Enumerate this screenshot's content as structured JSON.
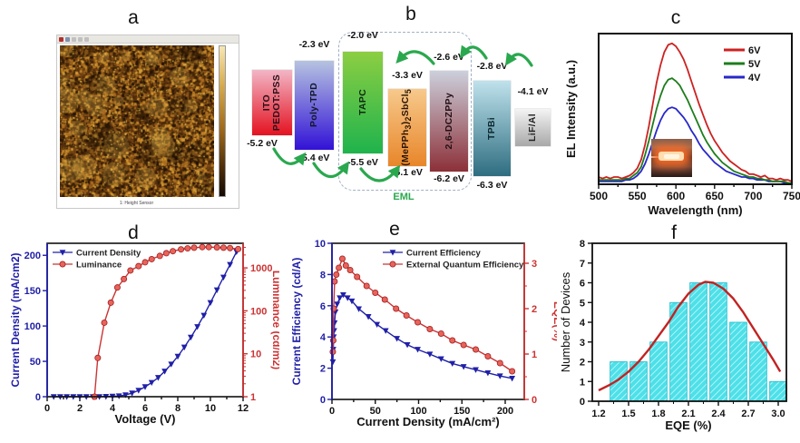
{
  "panels": {
    "a": {
      "label": "a",
      "caption": "1: Height Sensor"
    },
    "b": {
      "label": "b"
    },
    "c": {
      "label": "c"
    },
    "d": {
      "label": "d"
    },
    "e": {
      "label": "e"
    },
    "f": {
      "label": "f"
    }
  },
  "energy_diagram": {
    "eml_label": "EML",
    "arrow_color": "#2aa84e",
    "layers": [
      {
        "name_html": "ITO<br>PEDOT:PSS",
        "name": "ITO PEDOT:PSS",
        "bottom": "-5.2 eV",
        "color_top": "#f2b6c6",
        "color_bottom": "#e41220",
        "text_color": "#26101a"
      },
      {
        "name_html": "Poly-TPD",
        "name": "Poly-TPD",
        "top": "-2.3 eV",
        "bottom": "-5.4 eV",
        "color_top": "#b6c3e0",
        "color_bottom": "#3212d6",
        "text_color": "#101828"
      },
      {
        "name_html": "TAPC",
        "name": "TAPC",
        "top": "-2.0 eV",
        "bottom": "-5.5 eV",
        "color_top": "#8cce42",
        "color_bottom": "#1fb34d",
        "text_color": "#0d2a10"
      },
      {
        "name_html": "(MePPh<sub>3</sub>)<sub>2</sub>SbCl<sub>5</sub>",
        "name": "(MePPh3)2SbCl5",
        "top": "-3.3 eV",
        "bottom": "-6.1 eV",
        "color_top": "#f7c98c",
        "color_bottom": "#e8862a",
        "text_color": "#2a1505"
      },
      {
        "name_html": "2,6-DCZPPy",
        "name": "2,6-DCZPPy",
        "top": "-2.6 eV",
        "bottom": "-6.2 eV",
        "color_top": "#ccd0dc",
        "color_bottom": "#8c3038",
        "text_color": "#241016"
      },
      {
        "name_html": "TPBi",
        "name": "TPBi",
        "top": "-2.8 eV",
        "bottom": "-6.3 eV",
        "color_top": "#bfe2ec",
        "color_bottom": "#2e6d80",
        "text_color": "#0c2830"
      },
      {
        "name_html": "LiF/Al",
        "name": "LiF/Al",
        "top": "-4.1 eV",
        "color_top": "#f4f4f4",
        "color_bottom": "#a8a8a8",
        "text_color": "#222222"
      }
    ]
  },
  "chart_data": [
    {
      "panel": "c",
      "type": "line",
      "xlabel": "Wavelength (nm)",
      "ylabel": "EL Intensity (a.u.)",
      "xlim": [
        500,
        750
      ],
      "x_ticks": [
        500,
        550,
        600,
        650,
        700,
        750
      ],
      "legend_position": "top-right",
      "x": [
        500,
        505,
        510,
        515,
        520,
        525,
        530,
        535,
        540,
        545,
        550,
        555,
        560,
        565,
        570,
        575,
        580,
        585,
        590,
        595,
        600,
        605,
        610,
        615,
        620,
        625,
        630,
        635,
        640,
        645,
        650,
        655,
        660,
        665,
        670,
        675,
        680,
        685,
        690,
        695,
        700,
        705,
        710,
        715,
        720,
        725,
        730,
        735,
        740,
        745,
        750
      ],
      "series": [
        {
          "name": "4V",
          "color": "#2828c8",
          "y": [
            0.02,
            0.02,
            0.02,
            0.02,
            0.02,
            0.02,
            0.02,
            0.03,
            0.03,
            0.04,
            0.06,
            0.09,
            0.14,
            0.21,
            0.29,
            0.37,
            0.44,
            0.49,
            0.52,
            0.53,
            0.52,
            0.49,
            0.46,
            0.42,
            0.37,
            0.33,
            0.28,
            0.24,
            0.21,
            0.18,
            0.15,
            0.13,
            0.11,
            0.09,
            0.08,
            0.07,
            0.06,
            0.05,
            0.05,
            0.04,
            0.04,
            0.03,
            0.03,
            0.03,
            0.02,
            0.02,
            0.02,
            0.02,
            0.01,
            0.01,
            0.01
          ]
        },
        {
          "name": "5V",
          "color": "#1e7d1e",
          "y": [
            0.03,
            0.03,
            0.03,
            0.03,
            0.03,
            0.03,
            0.03,
            0.04,
            0.04,
            0.06,
            0.08,
            0.12,
            0.2,
            0.3,
            0.41,
            0.52,
            0.61,
            0.68,
            0.72,
            0.73,
            0.71,
            0.68,
            0.63,
            0.58,
            0.52,
            0.46,
            0.4,
            0.34,
            0.29,
            0.25,
            0.21,
            0.18,
            0.15,
            0.13,
            0.11,
            0.09,
            0.08,
            0.07,
            0.06,
            0.05,
            0.05,
            0.04,
            0.04,
            0.03,
            0.03,
            0.02,
            0.02,
            0.02,
            0.02,
            0.01,
            0.01
          ]
        },
        {
          "name": "6V",
          "color": "#cc2222",
          "y": [
            0.05,
            0.04,
            0.05,
            0.04,
            0.05,
            0.05,
            0.04,
            0.05,
            0.06,
            0.08,
            0.11,
            0.17,
            0.27,
            0.4,
            0.55,
            0.7,
            0.82,
            0.91,
            0.96,
            0.97,
            0.95,
            0.91,
            0.86,
            0.79,
            0.71,
            0.63,
            0.55,
            0.48,
            0.41,
            0.35,
            0.3,
            0.26,
            0.22,
            0.19,
            0.16,
            0.14,
            0.12,
            0.1,
            0.09,
            0.07,
            0.07,
            0.06,
            0.05,
            0.06,
            0.04,
            0.04,
            0.03,
            0.04,
            0.03,
            0.03,
            0.02
          ]
        }
      ]
    },
    {
      "panel": "d",
      "type": "dual-axis-line",
      "xlabel": "Voltage (V)",
      "ylabel_left": "Current Density (mA/cm2)",
      "ylabel_right": "Luminance (cd/m2)",
      "x_ticks": [
        0,
        2,
        4,
        6,
        8,
        10,
        12
      ],
      "left_ticks": [
        0,
        50,
        100,
        150,
        200
      ],
      "right_ticks": [
        1,
        10,
        100,
        1000
      ],
      "right_scale": "log",
      "left_color": "#2020a8",
      "right_color": "#cc3333",
      "series": [
        {
          "name": "Current Density",
          "axis": "left",
          "marker": "triangle-down",
          "line_color": "#2020a8",
          "marker_fill": "#2020a8",
          "points": [
            [
              0.4,
              0
            ],
            [
              0.8,
              0
            ],
            [
              1.2,
              0
            ],
            [
              1.6,
              0
            ],
            [
              2.0,
              0
            ],
            [
              2.4,
              0
            ],
            [
              2.8,
              0
            ],
            [
              3.2,
              0
            ],
            [
              3.6,
              0.2
            ],
            [
              4.0,
              0.5
            ],
            [
              4.4,
              1
            ],
            [
              4.8,
              2.5
            ],
            [
              5.2,
              5
            ],
            [
              5.6,
              9
            ],
            [
              6.0,
              14
            ],
            [
              6.4,
              20
            ],
            [
              6.8,
              27
            ],
            [
              7.2,
              36
            ],
            [
              7.6,
              46
            ],
            [
              8.0,
              57
            ],
            [
              8.4,
              70
            ],
            [
              8.8,
              84
            ],
            [
              9.2,
              99
            ],
            [
              9.6,
              115
            ],
            [
              10.0,
              133
            ],
            [
              10.4,
              151
            ],
            [
              10.8,
              169
            ],
            [
              11.2,
              187
            ],
            [
              11.6,
              205
            ]
          ]
        },
        {
          "name": "Luminance",
          "axis": "right",
          "marker": "circle",
          "line_color": "#cc3333",
          "marker_fill": "#e8635a",
          "points": [
            [
              2.9,
              1
            ],
            [
              3.1,
              8
            ],
            [
              3.5,
              53
            ],
            [
              3.9,
              155
            ],
            [
              4.3,
              350
            ],
            [
              4.7,
              550
            ],
            [
              5.1,
              870
            ],
            [
              5.6,
              1100
            ],
            [
              6.0,
              1350
            ],
            [
              6.4,
              1600
            ],
            [
              6.9,
              1900
            ],
            [
              7.3,
              2200
            ],
            [
              7.7,
              2450
            ],
            [
              8.2,
              2700
            ],
            [
              8.6,
              2850
            ],
            [
              9.0,
              2950
            ],
            [
              9.5,
              3050
            ],
            [
              9.9,
              3050
            ],
            [
              10.4,
              3000
            ],
            [
              10.8,
              2950
            ],
            [
              11.2,
              2900
            ],
            [
              11.7,
              2750
            ]
          ]
        }
      ]
    },
    {
      "panel": "e",
      "type": "dual-axis-line",
      "xlabel": "Current Density (mA/cm²)",
      "ylabel_left": "Current Efficiency (cd/A)",
      "ylabel_right": "EQE(%)",
      "x_ticks": [
        0,
        50,
        100,
        150,
        200
      ],
      "left_ticks": [
        0,
        2,
        4,
        6,
        8,
        10
      ],
      "right_ticks": [
        0,
        1,
        2,
        3
      ],
      "right_scale": "linear",
      "left_color": "#2020a8",
      "right_color": "#cc3333",
      "series": [
        {
          "name": "Current Efficiency",
          "axis": "left",
          "marker": "triangle-down",
          "line_color": "#2020a8",
          "marker_fill": "#2020a8",
          "points": [
            [
              1,
              2.4
            ],
            [
              1.5,
              3.2
            ],
            [
              2,
              4.0
            ],
            [
              2.5,
              4.4
            ],
            [
              3,
              4.9
            ],
            [
              4,
              5.6
            ],
            [
              6,
              6.1
            ],
            [
              9,
              6.5
            ],
            [
              13,
              6.7
            ],
            [
              18,
              6.5
            ],
            [
              23,
              6.3
            ],
            [
              31,
              5.8
            ],
            [
              42,
              5.3
            ],
            [
              52,
              4.8
            ],
            [
              62,
              4.4
            ],
            [
              75,
              3.9
            ],
            [
              87,
              3.5
            ],
            [
              99,
              3.2
            ],
            [
              113,
              2.9
            ],
            [
              126,
              2.6
            ],
            [
              139,
              2.3
            ],
            [
              152,
              2.1
            ],
            [
              166,
              1.9
            ],
            [
              180,
              1.7
            ],
            [
              194,
              1.5
            ],
            [
              208,
              1.35
            ]
          ]
        },
        {
          "name": "External Quantum Efficiency",
          "axis": "right",
          "marker": "circle",
          "line_color": "#cc3333",
          "marker_fill": "#e8635a",
          "points": [
            [
              1,
              1.05
            ],
            [
              1.5,
              1.3
            ],
            [
              2,
              2.0
            ],
            [
              3,
              2.6
            ],
            [
              5,
              2.75
            ],
            [
              8,
              2.9
            ],
            [
              12,
              3.1
            ],
            [
              16,
              2.95
            ],
            [
              21,
              2.85
            ],
            [
              29,
              2.7
            ],
            [
              40,
              2.5
            ],
            [
              50,
              2.35
            ],
            [
              61,
              2.2
            ],
            [
              74,
              2.0
            ],
            [
              86,
              1.85
            ],
            [
              99,
              1.7
            ],
            [
              113,
              1.55
            ],
            [
              126,
              1.45
            ],
            [
              139,
              1.3
            ],
            [
              152,
              1.2
            ],
            [
              166,
              1.1
            ],
            [
              180,
              0.95
            ],
            [
              194,
              0.8
            ],
            [
              208,
              0.62
            ]
          ]
        }
      ]
    },
    {
      "panel": "f",
      "type": "histogram",
      "xlabel": "EQE (%)",
      "ylabel": "Number of Devices",
      "x_ticks": [
        1.2,
        1.5,
        1.8,
        2.1,
        2.4,
        2.7,
        3.0
      ],
      "y_ticks": [
        0,
        1,
        2,
        3,
        4,
        5,
        6,
        7,
        8
      ],
      "bar_color": "#4de0e8",
      "bar_edge": "#1fbccc",
      "curve_color": "#c22222",
      "bins": {
        "centers": [
          1.4,
          1.6,
          1.8,
          2.0,
          2.2,
          2.4,
          2.6,
          2.8,
          3.0
        ],
        "width": 0.17,
        "values": [
          2,
          2,
          3,
          5,
          6,
          6,
          4,
          3,
          1
        ]
      },
      "fit_curve": [
        [
          1.2,
          0.55
        ],
        [
          1.3,
          0.8
        ],
        [
          1.4,
          1.1
        ],
        [
          1.5,
          1.5
        ],
        [
          1.6,
          2.0
        ],
        [
          1.7,
          2.6
        ],
        [
          1.8,
          3.3
        ],
        [
          1.9,
          4.0
        ],
        [
          2.0,
          4.8
        ],
        [
          2.1,
          5.45
        ],
        [
          2.2,
          5.9
        ],
        [
          2.27,
          6.05
        ],
        [
          2.35,
          6.0
        ],
        [
          2.45,
          5.7
        ],
        [
          2.55,
          5.2
        ],
        [
          2.65,
          4.5
        ],
        [
          2.75,
          3.7
        ],
        [
          2.85,
          2.9
        ],
        [
          2.95,
          2.1
        ],
        [
          3.02,
          1.5
        ]
      ]
    }
  ]
}
